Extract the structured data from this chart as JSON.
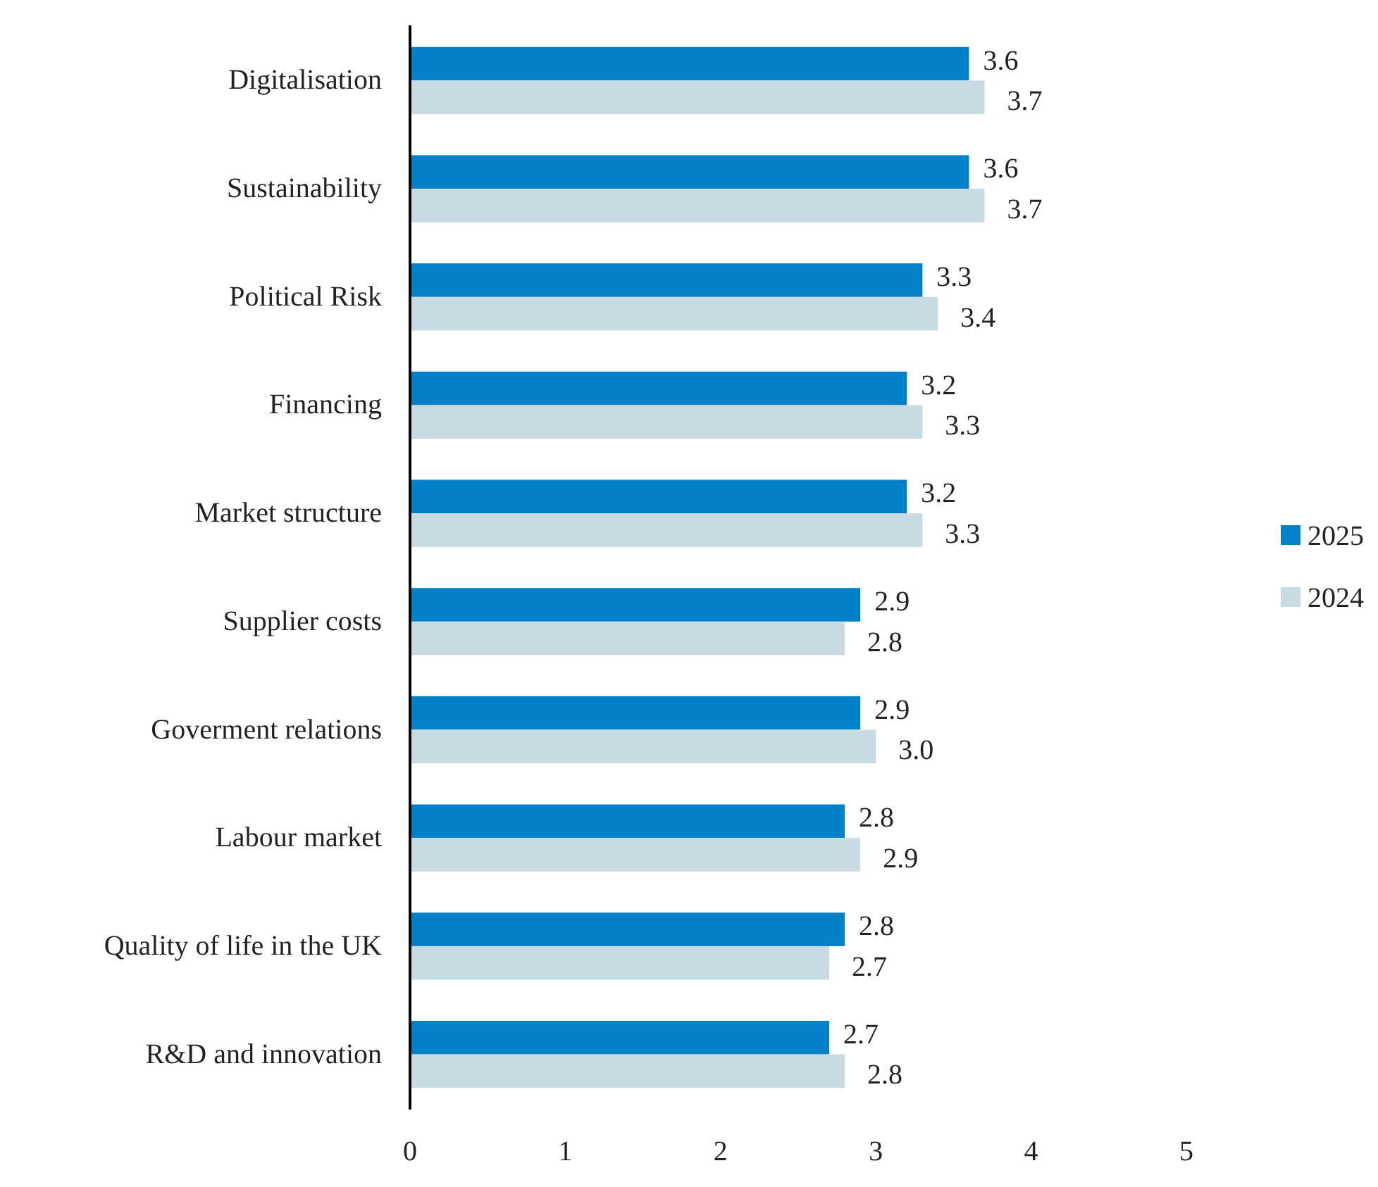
{
  "chart_data": {
    "type": "bar",
    "orientation": "horizontal",
    "categories": [
      "Digitalisation",
      "Sustainability",
      "Political Risk",
      "Financing",
      "Market structure",
      "Supplier costs",
      "Goverment relations",
      "Labour market",
      "Quality of life in the UK",
      "R&D and innovation"
    ],
    "series": [
      {
        "name": "2025",
        "color": "#0380c8",
        "values": [
          3.6,
          3.6,
          3.3,
          3.2,
          3.2,
          2.9,
          2.9,
          2.8,
          2.8,
          2.7
        ],
        "value_labels": [
          "3.6",
          "3.6",
          "3.3",
          "3.2",
          "3.2",
          "2.9",
          "2.9",
          "2.8",
          "2.8",
          "2.7"
        ]
      },
      {
        "name": "2024",
        "color": "#c8dae2",
        "values": [
          3.7,
          3.7,
          3.4,
          3.3,
          3.3,
          2.8,
          3.0,
          2.9,
          2.7,
          2.8
        ],
        "value_labels": [
          "3.7",
          "3.7",
          "3.4",
          "3.3",
          "3.3",
          "2.8",
          "3.0",
          "2.9",
          "2.7",
          "2.8"
        ]
      }
    ],
    "xlim": [
      0,
      5
    ],
    "xticks": [
      0,
      1,
      2,
      3,
      4,
      5
    ],
    "grid": false,
    "legend": "right"
  }
}
